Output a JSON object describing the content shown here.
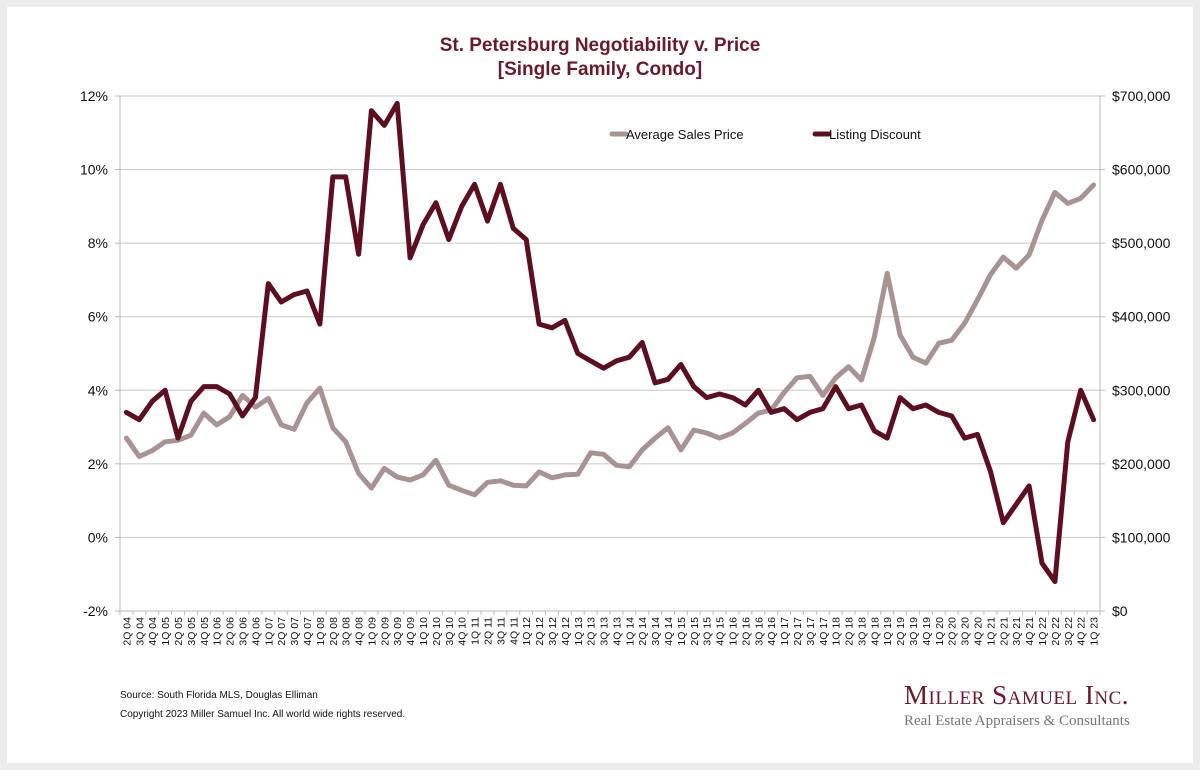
{
  "chart_data": {
    "type": "line",
    "title": "St. Petersburg Negotiability v. Price",
    "subtitle": "[Single Family, Condo]",
    "xlabel": "",
    "ylabel_left": "Listing Discount",
    "ylabel_right": "Average Sales Price",
    "ylim_left": [
      -2,
      12
    ],
    "ylim_right": [
      0,
      700000
    ],
    "left_ticks": [
      "-2%",
      "0%",
      "2%",
      "4%",
      "6%",
      "8%",
      "10%",
      "12%"
    ],
    "left_tick_values": [
      -2,
      0,
      2,
      4,
      6,
      8,
      10,
      12
    ],
    "right_ticks": [
      "$0",
      "$100,000",
      "$200,000",
      "$300,000",
      "$400,000",
      "$500,000",
      "$600,000",
      "$700,000"
    ],
    "right_tick_values": [
      0,
      100000,
      200000,
      300000,
      400000,
      500000,
      600000,
      700000
    ],
    "grid": true,
    "legend_position": "top-right",
    "categories": [
      "2Q 04",
      "3Q 04",
      "4Q 04",
      "1Q 05",
      "2Q 05",
      "3Q 05",
      "4Q 05",
      "1Q 06",
      "2Q 06",
      "3Q 06",
      "4Q 06",
      "1Q 07",
      "2Q 07",
      "3Q 07",
      "4Q 07",
      "1Q 08",
      "2Q 08",
      "3Q 08",
      "4Q 08",
      "1Q 09",
      "2Q 09",
      "3Q 09",
      "4Q 09",
      "1Q 10",
      "2Q 10",
      "3Q 10",
      "4Q 10",
      "1Q 11",
      "2Q 11",
      "3Q 11",
      "4Q 11",
      "1Q 12",
      "2Q 12",
      "3Q 12",
      "4Q 12",
      "1Q 13",
      "2Q 13",
      "3Q 13",
      "4Q 13",
      "1Q 14",
      "2Q 14",
      "3Q 14",
      "4Q 14",
      "1Q 15",
      "2Q 15",
      "3Q 15",
      "4Q 15",
      "1Q 16",
      "2Q 16",
      "3Q 16",
      "4Q 16",
      "1Q 17",
      "2Q 17",
      "3Q 17",
      "4Q 17",
      "1Q 18",
      "2Q 18",
      "3Q 18",
      "4Q 18",
      "1Q 19",
      "2Q 19",
      "3Q 19",
      "4Q 19",
      "1Q 20",
      "2Q 20",
      "3Q 20",
      "4Q 20",
      "1Q 21",
      "2Q 21",
      "3Q 21",
      "4Q 21",
      "1Q 22",
      "2Q 22",
      "3Q 22",
      "4Q 22",
      "1Q 23"
    ],
    "series": [
      {
        "name": "Average Sales Price",
        "axis": "right",
        "color": "#a89292",
        "values": [
          235000,
          210000,
          218000,
          230000,
          232000,
          239000,
          269000,
          253000,
          264000,
          293000,
          277000,
          289000,
          253000,
          247000,
          283000,
          303000,
          249000,
          230000,
          187000,
          167000,
          194000,
          182000,
          178000,
          185000,
          205000,
          171000,
          164000,
          158000,
          175000,
          177000,
          171000,
          170000,
          189000,
          181000,
          185000,
          186000,
          215000,
          213000,
          198000,
          196000,
          219000,
          235000,
          249000,
          219000,
          246000,
          242000,
          235000,
          242000,
          255000,
          269000,
          273000,
          297000,
          317000,
          319000,
          293000,
          317000,
          332000,
          314000,
          372000,
          459000,
          375000,
          345000,
          337000,
          364000,
          368000,
          391000,
          423000,
          457000,
          481000,
          466000,
          484000,
          531000,
          569000,
          554000,
          561000,
          579000
        ]
      },
      {
        "name": "Listing Discount",
        "axis": "left",
        "color": "#5e0f1f",
        "values": [
          3.4,
          3.2,
          3.7,
          4.0,
          2.7,
          3.7,
          4.1,
          4.1,
          3.9,
          3.3,
          3.8,
          6.9,
          6.4,
          6.6,
          6.7,
          5.8,
          9.8,
          9.8,
          7.7,
          11.6,
          11.2,
          11.8,
          7.6,
          8.5,
          9.1,
          8.1,
          9.0,
          9.6,
          8.6,
          9.6,
          8.4,
          8.1,
          5.8,
          5.7,
          5.9,
          5.0,
          4.8,
          4.6,
          4.8,
          4.9,
          5.3,
          4.2,
          4.3,
          4.7,
          4.1,
          3.8,
          3.9,
          3.8,
          3.6,
          4.0,
          3.4,
          3.5,
          3.2,
          3.4,
          3.5,
          4.1,
          3.5,
          3.6,
          2.9,
          2.7,
          3.8,
          3.5,
          3.6,
          3.4,
          3.3,
          2.7,
          2.8,
          1.8,
          0.4,
          0.9,
          1.4,
          -0.7,
          -1.2,
          2.6,
          4.0,
          3.2
        ]
      }
    ]
  },
  "footer": {
    "source": "Source: South Florida MLS, Douglas Elliman",
    "copyright": "Copyright 2023 Miller Samuel Inc.  All world wide rights reserved."
  },
  "logo": {
    "name": "Miller Samuel Inc.",
    "tagline": "Real Estate Appraisers & Consultants"
  }
}
